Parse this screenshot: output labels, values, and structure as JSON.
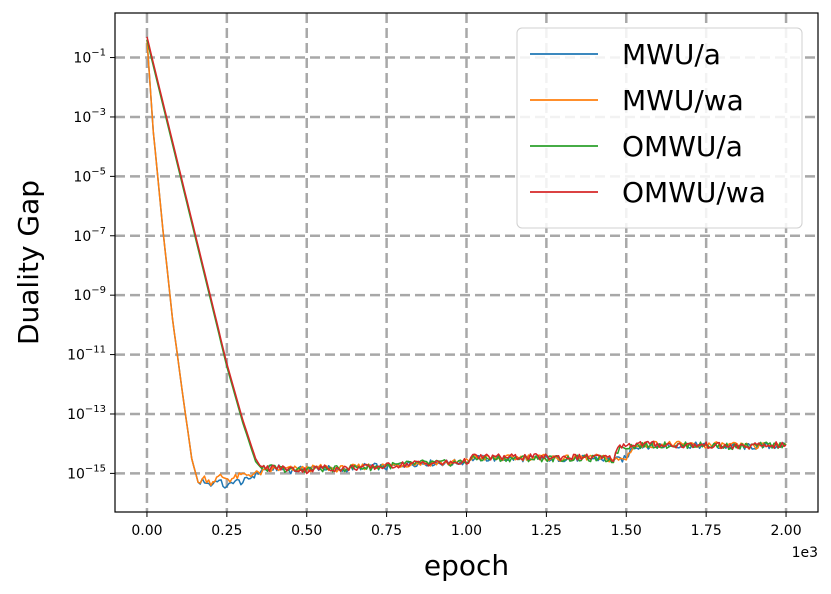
{
  "chart_data": {
    "type": "line",
    "title": "",
    "xlabel": "epoch",
    "ylabel": "Duality Gap",
    "x_offset_text": "1e3",
    "yscale": "log",
    "xlim": [
      -0.1,
      2.1
    ],
    "ylim_exponent": [
      -16.3,
      0.5
    ],
    "x_ticks": [
      "0.00",
      "0.25",
      "0.50",
      "0.75",
      "1.00",
      "1.25",
      "1.50",
      "1.75",
      "2.00"
    ],
    "x_tick_values": [
      0,
      0.25,
      0.5,
      0.75,
      1.0,
      1.25,
      1.5,
      1.75,
      2.0
    ],
    "y_tick_exponents": [
      "-1",
      "-3",
      "-5",
      "-7",
      "-9",
      "-11",
      "-13",
      "-15"
    ],
    "y_tick_base": "10",
    "grid": true,
    "legend_position": "top-right",
    "series": [
      {
        "name": "MWU/a",
        "color": "#1f77b4",
        "points": [
          [
            0,
            -0.4
          ],
          [
            0.02,
            -3.5
          ],
          [
            0.05,
            -6.8
          ],
          [
            0.08,
            -9.8
          ],
          [
            0.11,
            -12.2
          ],
          [
            0.14,
            -14.5
          ],
          [
            0.16,
            -15.3
          ],
          [
            0.18,
            -15.25
          ],
          [
            0.2,
            -15.4
          ],
          [
            0.22,
            -15.2
          ],
          [
            0.25,
            -15.5
          ],
          [
            0.27,
            -15.25
          ],
          [
            0.3,
            -15.3
          ],
          [
            0.33,
            -15.1
          ],
          [
            0.36,
            -14.9
          ],
          [
            0.4,
            -14.8
          ],
          [
            0.45,
            -14.9
          ],
          [
            0.5,
            -14.85
          ],
          [
            0.55,
            -14.8
          ],
          [
            0.6,
            -14.9
          ],
          [
            0.65,
            -14.8
          ],
          [
            0.7,
            -14.75
          ],
          [
            0.75,
            -14.8
          ],
          [
            0.8,
            -14.7
          ],
          [
            0.85,
            -14.65
          ],
          [
            0.9,
            -14.65
          ],
          [
            0.95,
            -14.65
          ],
          [
            1.0,
            -14.6
          ],
          [
            1.02,
            -14.5
          ],
          [
            1.1,
            -14.5
          ],
          [
            1.2,
            -14.5
          ],
          [
            1.3,
            -14.5
          ],
          [
            1.4,
            -14.5
          ],
          [
            1.47,
            -14.55
          ],
          [
            1.5,
            -14.5
          ],
          [
            1.52,
            -14.1
          ],
          [
            1.6,
            -14.05
          ],
          [
            1.7,
            -14.05
          ],
          [
            1.8,
            -14.1
          ],
          [
            1.9,
            -14.1
          ],
          [
            2.0,
            -14.05
          ]
        ]
      },
      {
        "name": "MWU/wa",
        "color": "#ff7f0e",
        "points": [
          [
            0,
            -0.4
          ],
          [
            0.02,
            -3.5
          ],
          [
            0.05,
            -6.8
          ],
          [
            0.08,
            -9.8
          ],
          [
            0.11,
            -12.2
          ],
          [
            0.14,
            -14.5
          ],
          [
            0.16,
            -15.3
          ],
          [
            0.18,
            -15.15
          ],
          [
            0.2,
            -15.3
          ],
          [
            0.23,
            -15.1
          ],
          [
            0.26,
            -15.2
          ],
          [
            0.3,
            -15.05
          ],
          [
            0.35,
            -15.0
          ],
          [
            0.4,
            -14.85
          ],
          [
            0.45,
            -14.85
          ],
          [
            0.5,
            -14.85
          ],
          [
            0.55,
            -14.8
          ],
          [
            0.6,
            -14.85
          ],
          [
            0.65,
            -14.8
          ],
          [
            0.7,
            -14.75
          ],
          [
            0.75,
            -14.75
          ],
          [
            0.8,
            -14.7
          ],
          [
            0.85,
            -14.65
          ],
          [
            0.9,
            -14.65
          ],
          [
            0.95,
            -14.65
          ],
          [
            1.0,
            -14.6
          ],
          [
            1.02,
            -14.45
          ],
          [
            1.1,
            -14.5
          ],
          [
            1.2,
            -14.45
          ],
          [
            1.3,
            -14.5
          ],
          [
            1.4,
            -14.45
          ],
          [
            1.47,
            -14.55
          ],
          [
            1.5,
            -14.5
          ],
          [
            1.52,
            -14.1
          ],
          [
            1.6,
            -14.0
          ],
          [
            1.7,
            -14.05
          ],
          [
            1.8,
            -14.05
          ],
          [
            1.9,
            -14.1
          ],
          [
            2.0,
            -14.0
          ]
        ]
      },
      {
        "name": "OMWU/a",
        "color": "#2ca02c",
        "points": [
          [
            0,
            -0.4
          ],
          [
            0.05,
            -2.6
          ],
          [
            0.1,
            -4.8
          ],
          [
            0.15,
            -7.0
          ],
          [
            0.2,
            -9.2
          ],
          [
            0.25,
            -11.4
          ],
          [
            0.3,
            -13.3
          ],
          [
            0.34,
            -14.6
          ],
          [
            0.36,
            -14.85
          ],
          [
            0.4,
            -14.8
          ],
          [
            0.45,
            -14.9
          ],
          [
            0.5,
            -14.85
          ],
          [
            0.55,
            -14.85
          ],
          [
            0.6,
            -14.85
          ],
          [
            0.65,
            -14.8
          ],
          [
            0.7,
            -14.8
          ],
          [
            0.75,
            -14.75
          ],
          [
            0.8,
            -14.7
          ],
          [
            0.85,
            -14.65
          ],
          [
            0.9,
            -14.65
          ],
          [
            0.95,
            -14.65
          ],
          [
            1.0,
            -14.6
          ],
          [
            1.02,
            -14.5
          ],
          [
            1.1,
            -14.5
          ],
          [
            1.2,
            -14.5
          ],
          [
            1.3,
            -14.5
          ],
          [
            1.4,
            -14.5
          ],
          [
            1.46,
            -14.55
          ],
          [
            1.48,
            -14.1
          ],
          [
            1.55,
            -14.05
          ],
          [
            1.65,
            -14.05
          ],
          [
            1.75,
            -14.05
          ],
          [
            1.85,
            -14.1
          ],
          [
            1.95,
            -14.05
          ],
          [
            2.0,
            -14.05
          ]
        ]
      },
      {
        "name": "OMWU/wa",
        "color": "#d62728",
        "points": [
          [
            0,
            -0.3
          ],
          [
            0.05,
            -2.5
          ],
          [
            0.1,
            -4.7
          ],
          [
            0.15,
            -6.9
          ],
          [
            0.2,
            -9.1
          ],
          [
            0.25,
            -11.3
          ],
          [
            0.3,
            -13.2
          ],
          [
            0.34,
            -14.5
          ],
          [
            0.36,
            -14.85
          ],
          [
            0.4,
            -14.8
          ],
          [
            0.45,
            -14.85
          ],
          [
            0.5,
            -14.9
          ],
          [
            0.55,
            -14.8
          ],
          [
            0.6,
            -14.85
          ],
          [
            0.65,
            -14.8
          ],
          [
            0.7,
            -14.8
          ],
          [
            0.75,
            -14.75
          ],
          [
            0.8,
            -14.7
          ],
          [
            0.85,
            -14.65
          ],
          [
            0.9,
            -14.65
          ],
          [
            0.95,
            -14.65
          ],
          [
            1.0,
            -14.6
          ],
          [
            1.02,
            -14.45
          ],
          [
            1.1,
            -14.45
          ],
          [
            1.2,
            -14.45
          ],
          [
            1.3,
            -14.45
          ],
          [
            1.4,
            -14.45
          ],
          [
            1.46,
            -14.5
          ],
          [
            1.48,
            -14.05
          ],
          [
            1.55,
            -14.0
          ],
          [
            1.65,
            -14.05
          ],
          [
            1.75,
            -14.05
          ],
          [
            1.85,
            -14.1
          ],
          [
            1.95,
            -14.05
          ],
          [
            2.0,
            -14.05
          ]
        ]
      }
    ]
  }
}
